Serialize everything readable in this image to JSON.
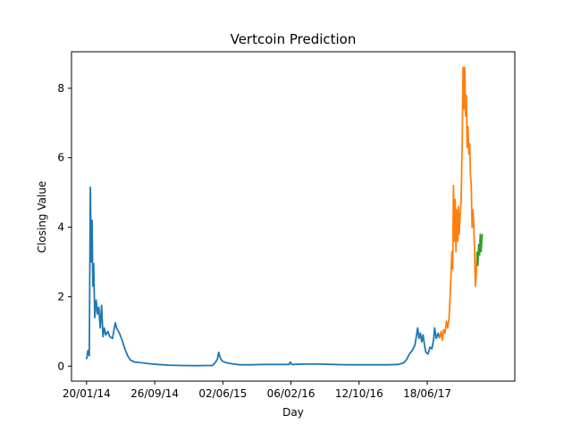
{
  "chart_data": {
    "type": "line",
    "title": "Vertcoin Prediction",
    "xlabel": "Day",
    "ylabel": "Closing Value",
    "x_ticks": [
      "20/01/14",
      "26/09/14",
      "02/06/15",
      "06/02/16",
      "12/10/16",
      "18/06/17"
    ],
    "x_tick_days": [
      0,
      249,
      498,
      747,
      996,
      1245
    ],
    "y_ticks": [
      "0",
      "2",
      "4",
      "6",
      "8"
    ],
    "y_tick_values": [
      0,
      2,
      4,
      6,
      8
    ],
    "xlim": [
      -55,
      1565
    ],
    "ylim": [
      -0.43,
      9.05
    ],
    "grid": false,
    "series": [
      {
        "color": "#1f77b4",
        "points": [
          [
            0,
            0.2
          ],
          [
            5,
            0.45
          ],
          [
            10,
            0.3
          ],
          [
            14,
            5.15
          ],
          [
            17,
            3.0
          ],
          [
            20,
            4.2
          ],
          [
            23,
            2.3
          ],
          [
            26,
            2.95
          ],
          [
            30,
            1.4
          ],
          [
            35,
            1.9
          ],
          [
            40,
            1.5
          ],
          [
            45,
            1.7
          ],
          [
            50,
            1.1
          ],
          [
            55,
            1.75
          ],
          [
            60,
            0.85
          ],
          [
            65,
            1.1
          ],
          [
            70,
            0.9
          ],
          [
            78,
            1.0
          ],
          [
            85,
            0.85
          ],
          [
            95,
            0.8
          ],
          [
            105,
            1.25
          ],
          [
            110,
            1.1
          ],
          [
            120,
            0.95
          ],
          [
            130,
            0.75
          ],
          [
            140,
            0.5
          ],
          [
            150,
            0.3
          ],
          [
            160,
            0.18
          ],
          [
            175,
            0.12
          ],
          [
            200,
            0.1
          ],
          [
            230,
            0.07
          ],
          [
            260,
            0.05
          ],
          [
            300,
            0.03
          ],
          [
            350,
            0.02
          ],
          [
            400,
            0.015
          ],
          [
            440,
            0.02
          ],
          [
            460,
            0.02
          ],
          [
            470,
            0.1
          ],
          [
            478,
            0.2
          ],
          [
            483,
            0.4
          ],
          [
            488,
            0.25
          ],
          [
            495,
            0.15
          ],
          [
            510,
            0.1
          ],
          [
            530,
            0.07
          ],
          [
            560,
            0.04
          ],
          [
            600,
            0.04
          ],
          [
            650,
            0.05
          ],
          [
            700,
            0.05
          ],
          [
            740,
            0.05
          ],
          [
            745,
            0.12
          ],
          [
            750,
            0.05
          ],
          [
            800,
            0.06
          ],
          [
            850,
            0.06
          ],
          [
            900,
            0.05
          ],
          [
            950,
            0.04
          ],
          [
            1000,
            0.04
          ],
          [
            1050,
            0.04
          ],
          [
            1100,
            0.04
          ],
          [
            1140,
            0.05
          ],
          [
            1160,
            0.1
          ],
          [
            1170,
            0.2
          ],
          [
            1180,
            0.35
          ],
          [
            1190,
            0.45
          ],
          [
            1200,
            0.6
          ],
          [
            1205,
            0.85
          ],
          [
            1210,
            1.1
          ],
          [
            1215,
            0.8
          ],
          [
            1220,
            0.95
          ],
          [
            1225,
            0.7
          ],
          [
            1230,
            0.9
          ],
          [
            1235,
            0.6
          ],
          [
            1240,
            0.4
          ],
          [
            1248,
            0.35
          ],
          [
            1255,
            0.55
          ],
          [
            1262,
            0.5
          ],
          [
            1268,
            0.75
          ],
          [
            1272,
            1.1
          ],
          [
            1278,
            0.8
          ],
          [
            1285,
            0.95
          ],
          [
            1290,
            0.8
          ]
        ]
      },
      {
        "color": "#ff7f0e",
        "points": [
          [
            1290,
            0.8
          ],
          [
            1296,
            1.0
          ],
          [
            1300,
            0.75
          ],
          [
            1305,
            1.05
          ],
          [
            1310,
            0.95
          ],
          [
            1315,
            1.3
          ],
          [
            1320,
            1.1
          ],
          [
            1325,
            1.4
          ],
          [
            1330,
            2.2
          ],
          [
            1335,
            3.3
          ],
          [
            1338,
            2.8
          ],
          [
            1341,
            5.2
          ],
          [
            1344,
            3.6
          ],
          [
            1347,
            4.8
          ],
          [
            1350,
            3.3
          ],
          [
            1353,
            4.5
          ],
          [
            1356,
            3.6
          ],
          [
            1359,
            4.6
          ],
          [
            1362,
            3.8
          ],
          [
            1365,
            4.3
          ],
          [
            1369,
            4.8
          ],
          [
            1373,
            6.5
          ],
          [
            1376,
            8.6
          ],
          [
            1379,
            7.4
          ],
          [
            1382,
            8.6
          ],
          [
            1385,
            7.2
          ],
          [
            1388,
            7.8
          ],
          [
            1391,
            6.3
          ],
          [
            1394,
            6.9
          ],
          [
            1397,
            6.1
          ],
          [
            1400,
            6.4
          ],
          [
            1403,
            5.5
          ],
          [
            1406,
            5.2
          ],
          [
            1409,
            4.0
          ],
          [
            1412,
            4.5
          ],
          [
            1415,
            4.1
          ],
          [
            1418,
            3.3
          ],
          [
            1421,
            2.3
          ],
          [
            1424,
            2.6
          ],
          [
            1427,
            3.3
          ]
        ]
      },
      {
        "color": "#2ca02c",
        "points": [
          [
            1427,
            3.3
          ],
          [
            1430,
            2.9
          ],
          [
            1433,
            3.5
          ],
          [
            1436,
            3.2
          ],
          [
            1439,
            3.8
          ],
          [
            1442,
            3.3
          ],
          [
            1445,
            3.75
          ],
          [
            1448,
            3.8
          ]
        ]
      }
    ]
  }
}
